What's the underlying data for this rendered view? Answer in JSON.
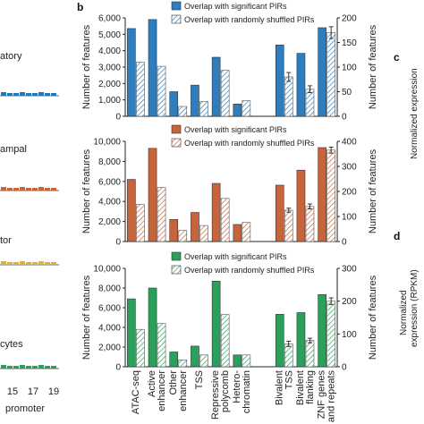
{
  "panel_letters": {
    "b": "b",
    "c": "c",
    "d": "d"
  },
  "left_fragments": {
    "row_labels": [
      "atory",
      "ampal",
      "tor",
      "cytes"
    ],
    "row_colors": [
      "#1f77b4",
      "#c8643c",
      "#d9b43a",
      "#2aa05a"
    ],
    "ticks": [
      "15",
      "17",
      "19"
    ],
    "xlabel": "promoter"
  },
  "right_fragments": {
    "c_ylabel": "Normalized expression",
    "d_ylabel_line1": "Normalized",
    "d_ylabel_line2": "expression (RPKM)"
  },
  "categories": [
    "ATAC-seq",
    "Active enhancer",
    "Other enhancer",
    "TSS",
    "Repressive polycomb",
    "Hetero-chromatin",
    "Bivalent TSS",
    "Bivalent flanking",
    "ZNF genes and repeats"
  ],
  "category_lines": [
    [
      "ATAC-seq"
    ],
    [
      "Active",
      "enhancer"
    ],
    [
      "Other",
      "enhancer"
    ],
    [
      "TSS"
    ],
    [
      "Repressive",
      "polycomb"
    ],
    [
      "Hetero-",
      "chromatin"
    ],
    [
      "Bivalent",
      "TSS"
    ],
    [
      "Bivalent",
      "flanking"
    ],
    [
      "ZNF genes",
      "and repeats"
    ]
  ],
  "chart_data": [
    {
      "type": "bar",
      "ylabel": "Number of features",
      "y2label": "Number of features",
      "ylim": [
        0,
        6000
      ],
      "y2lim": [
        0,
        200
      ],
      "yticks": [
        "0",
        "1,000",
        "2,000",
        "3,000",
        "4,000",
        "5,000",
        "6,000"
      ],
      "y2ticks": [
        "0",
        "50",
        "100",
        "150",
        "200"
      ],
      "color": "#2e7dbf",
      "series": [
        {
          "name": "Overlap with significant PIRs",
          "values": [
            5350,
            5900,
            1500,
            1900,
            3600,
            750,
            145,
            128,
            180
          ]
        },
        {
          "name": "Overlap with randomly shuffled PIRs",
          "values": [
            3300,
            3050,
            600,
            900,
            2800,
            950,
            80,
            55,
            170
          ],
          "errors": [
            0,
            0,
            0,
            0,
            0,
            0,
            9,
            7,
            12
          ]
        }
      ]
    },
    {
      "type": "bar",
      "ylabel": "Number of features",
      "y2label": "Number of features",
      "ylim": [
        0,
        10000
      ],
      "y2lim": [
        0,
        400
      ],
      "yticks": [
        "0",
        "2,000",
        "4,000",
        "6,000",
        "8,000",
        "10,000"
      ],
      "y2ticks": [
        "0",
        "100",
        "200",
        "300",
        "400"
      ],
      "color": "#c8643c",
      "series": [
        {
          "name": "Overlap with significant PIRs",
          "values": [
            6200,
            9300,
            2200,
            2900,
            5800,
            1700,
            225,
            285,
            375
          ]
        },
        {
          "name": "Overlap with randomly shuffled PIRs",
          "values": [
            3700,
            5400,
            1100,
            1600,
            4300,
            1900,
            125,
            140,
            365
          ],
          "errors": [
            0,
            0,
            0,
            0,
            0,
            0,
            8,
            10,
            12
          ]
        }
      ]
    },
    {
      "type": "bar",
      "ylabel": "Number of features",
      "y2label": "Number of features",
      "ylim": [
        0,
        10000
      ],
      "y2lim": [
        0,
        300
      ],
      "yticks": [
        "0",
        "2,000",
        "4,000",
        "6,000",
        "8,000",
        "10,000"
      ],
      "y2ticks": [
        "0",
        "100",
        "200",
        "300"
      ],
      "color": "#2aa05a",
      "series": [
        {
          "name": "Overlap with significant PIRs",
          "values": [
            6900,
            8000,
            1500,
            2100,
            8700,
            1200,
            160,
            165,
            220
          ]
        },
        {
          "name": "Overlap with randomly shuffled PIRs",
          "values": [
            3800,
            4400,
            700,
            1200,
            5300,
            1200,
            70,
            80,
            200
          ],
          "errors": [
            0,
            0,
            0,
            0,
            0,
            0,
            8,
            7,
            10
          ]
        }
      ]
    }
  ]
}
